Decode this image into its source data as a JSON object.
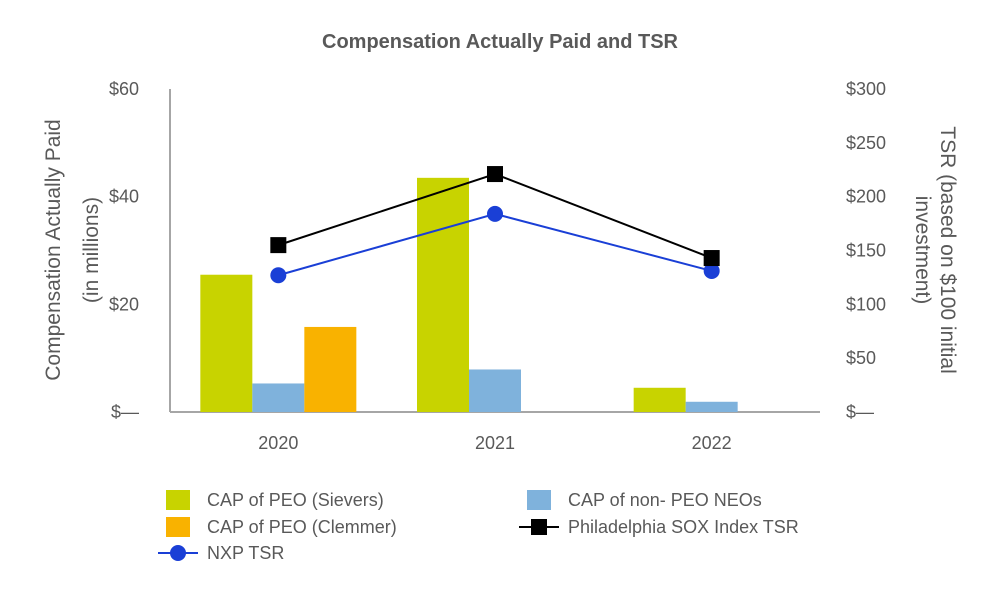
{
  "chart_data": {
    "type": "bar",
    "title": "Compensation Actually Paid and TSR",
    "categories": [
      "2020",
      "2021",
      "2022"
    ],
    "ylabel": [
      "Compensation Actually Paid",
      "(in millions)"
    ],
    "y2label": [
      "TSR (based on $100 initial",
      "investment)"
    ],
    "ylim": [
      0,
      60
    ],
    "y2lim": [
      0,
      300
    ],
    "yticks": [
      {
        "value": 0,
        "label": "$—"
      },
      {
        "value": 20,
        "label": "$20"
      },
      {
        "value": 40,
        "label": "$40"
      },
      {
        "value": 60,
        "label": "$60"
      }
    ],
    "y2ticks": [
      {
        "value": 0,
        "label": "$—"
      },
      {
        "value": 50,
        "label": "$50"
      },
      {
        "value": 100,
        "label": "$100"
      },
      {
        "value": 150,
        "label": "$150"
      },
      {
        "value": 200,
        "label": "$200"
      },
      {
        "value": 250,
        "label": "$250"
      },
      {
        "value": 300,
        "label": "$300"
      }
    ],
    "bar_series": [
      {
        "name": "CAP of PEO (Sievers)",
        "color": "#c8d300",
        "values": [
          25.5,
          43.5,
          4.5
        ]
      },
      {
        "name": "CAP of non- PEO NEOs",
        "color": "#7fb2dc",
        "values": [
          5.3,
          7.9,
          1.9
        ]
      },
      {
        "name": "CAP of PEO (Clemmer)",
        "color": "#f9b200",
        "values": [
          15.8,
          null,
          null
        ]
      }
    ],
    "line_series": [
      {
        "name": "NXP TSR",
        "color": "#1a3fd6",
        "marker": "circle",
        "values": [
          127,
          184,
          131
        ]
      },
      {
        "name": "Philadelphia SOX Index TSR",
        "color": "#000000",
        "marker": "square",
        "values": [
          155,
          221,
          143
        ]
      }
    ],
    "legend": [
      "CAP of PEO (Sievers)",
      "CAP of non- PEO NEOs",
      "CAP of PEO (Clemmer)",
      "Philadelphia SOX Index TSR",
      "NXP TSR"
    ],
    "legend_position": "bottom"
  }
}
